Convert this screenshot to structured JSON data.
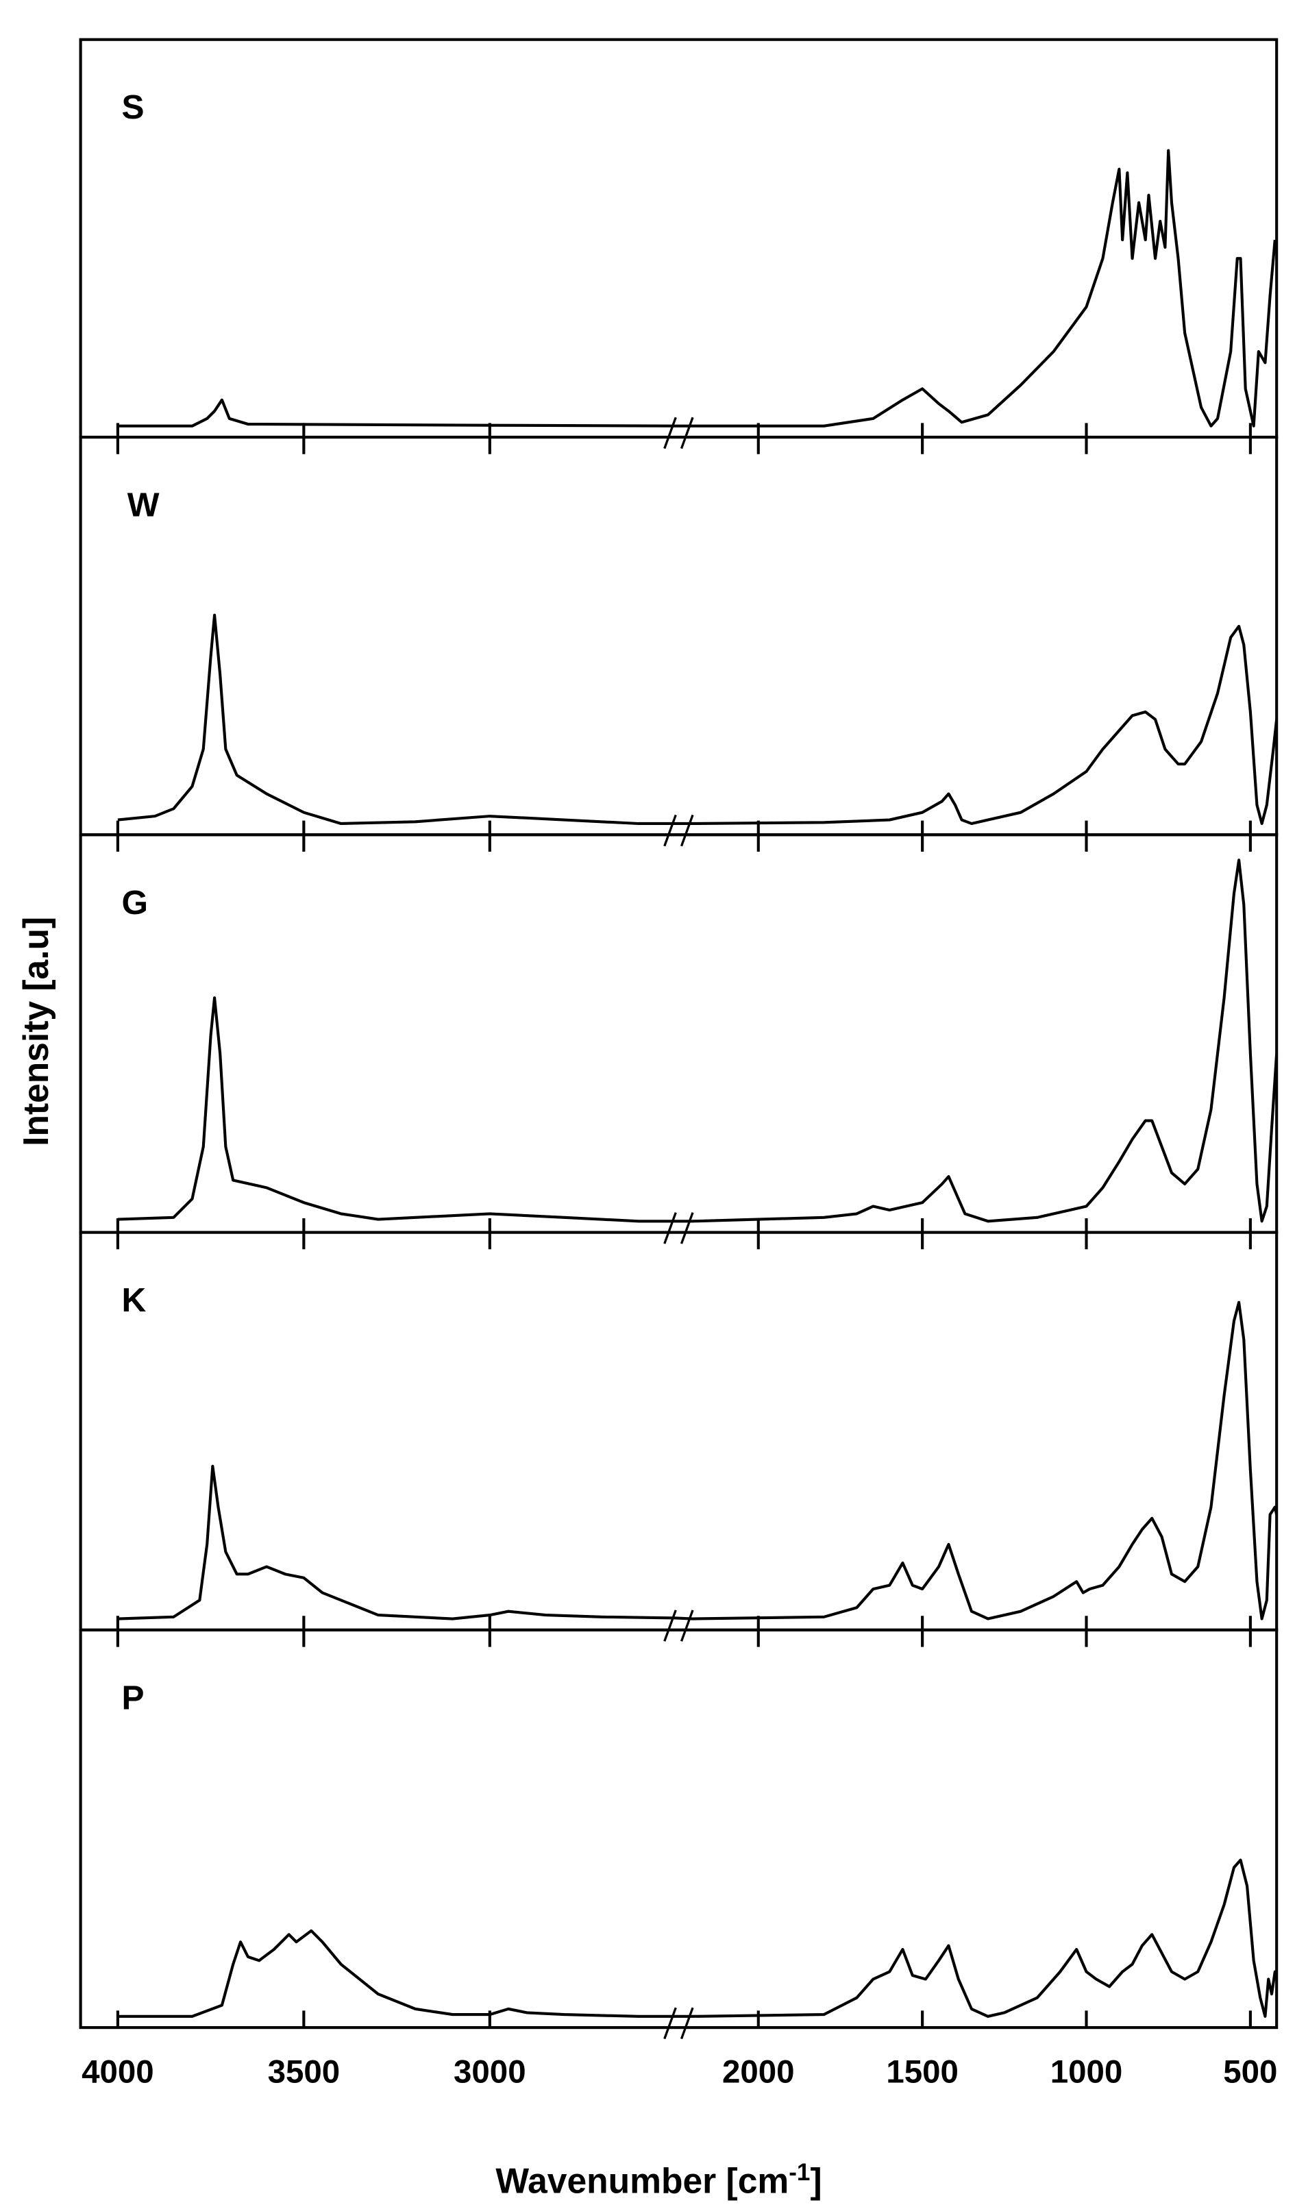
{
  "chart_data": {
    "type": "line",
    "ylabel": "Intensity [a.u]",
    "xlabel": {
      "text": "Wavenumber [cm",
      "sup": "-1",
      "end": "]"
    },
    "ylim": [
      -3,
      100
    ],
    "x_segments": [
      {
        "xlim": [
          4100,
          2500
        ],
        "xticks": [
          4000,
          3500,
          3000
        ]
      },
      {
        "xlim": [
          2200,
          420
        ],
        "xticks": [
          2000,
          1500,
          1000,
          500
        ]
      }
    ],
    "series": [
      {
        "name": "S",
        "color": "#000000",
        "x": [
          4000,
          3800,
          3760,
          3740,
          3720,
          3700,
          3650,
          3000,
          2500,
          2200,
          1800,
          1650,
          1560,
          1500,
          1450,
          1420,
          1380,
          1300,
          1200,
          1100,
          1000,
          950,
          920,
          900,
          890,
          875,
          860,
          840,
          820,
          810,
          790,
          775,
          760,
          750,
          740,
          720,
          700,
          650,
          620,
          600,
          560,
          540,
          530,
          515,
          490,
          475,
          455,
          440,
          425
        ],
        "values": [
          0,
          0,
          2,
          4,
          7,
          2,
          0.5,
          0.2,
          0,
          0,
          0,
          2,
          7,
          10,
          6,
          4,
          1,
          3,
          11,
          20,
          32,
          45,
          60,
          69,
          50,
          68,
          45,
          60,
          50,
          62,
          45,
          55,
          48,
          74,
          60,
          45,
          25,
          5,
          0,
          2,
          20,
          45,
          45,
          10,
          0,
          20,
          17,
          35,
          50
        ]
      },
      {
        "name": "W",
        "color": "#000000",
        "x": [
          4000,
          3900,
          3850,
          3800,
          3770,
          3750,
          3740,
          3725,
          3710,
          3680,
          3600,
          3500,
          3400,
          3200,
          3000,
          2800,
          2600,
          2200,
          1800,
          1600,
          1500,
          1440,
          1420,
          1400,
          1380,
          1350,
          1200,
          1100,
          1000,
          950,
          900,
          860,
          820,
          790,
          760,
          720,
          700,
          650,
          600,
          560,
          535,
          520,
          500,
          480,
          465,
          450,
          430,
          420
        ],
        "values": [
          1,
          2,
          4,
          10,
          20,
          45,
          56,
          40,
          20,
          13,
          8,
          3,
          0,
          0.5,
          2,
          1,
          0,
          0,
          0.3,
          1,
          3,
          6,
          8,
          5,
          1,
          0,
          3,
          8,
          14,
          20,
          25,
          29,
          30,
          28,
          20,
          16,
          16,
          22,
          35,
          50,
          53,
          48,
          30,
          5,
          0,
          5,
          20,
          28
        ]
      },
      {
        "name": "G",
        "color": "#000000",
        "x": [
          4000,
          3850,
          3800,
          3770,
          3750,
          3740,
          3725,
          3710,
          3690,
          3600,
          3500,
          3400,
          3300,
          3000,
          2800,
          2600,
          2200,
          1800,
          1700,
          1650,
          1600,
          1500,
          1440,
          1420,
          1400,
          1370,
          1300,
          1150,
          1050,
          1000,
          950,
          900,
          860,
          820,
          800,
          770,
          740,
          700,
          660,
          620,
          580,
          550,
          535,
          520,
          500,
          480,
          465,
          450,
          435,
          420
        ],
        "values": [
          0.5,
          1,
          6,
          20,
          50,
          60,
          45,
          20,
          11,
          9,
          5,
          2,
          0.5,
          2,
          1,
          0,
          0,
          1,
          2,
          4,
          3,
          5,
          10,
          12,
          8,
          2,
          0,
          1,
          3,
          4,
          9,
          16,
          22,
          27,
          27,
          20,
          13,
          10,
          14,
          30,
          60,
          88,
          97,
          85,
          45,
          10,
          0,
          4,
          25,
          45
        ]
      },
      {
        "name": "K",
        "color": "#000000",
        "x": [
          4000,
          3850,
          3780,
          3760,
          3745,
          3730,
          3710,
          3680,
          3650,
          3600,
          3550,
          3500,
          3450,
          3400,
          3300,
          3100,
          3000,
          2950,
          2850,
          2700,
          2500,
          2200,
          1800,
          1700,
          1650,
          1600,
          1560,
          1530,
          1500,
          1450,
          1420,
          1390,
          1350,
          1300,
          1200,
          1100,
          1030,
          1010,
          990,
          950,
          900,
          860,
          830,
          800,
          770,
          740,
          700,
          660,
          620,
          580,
          550,
          535,
          520,
          500,
          480,
          465,
          450,
          440,
          425,
          420
        ],
        "values": [
          0,
          0.5,
          5,
          20,
          41,
          30,
          18,
          12,
          12,
          14,
          12,
          11,
          7,
          5,
          1,
          0,
          1,
          2,
          1,
          0.5,
          0.2,
          0,
          0.5,
          3,
          8,
          9,
          15,
          9,
          8,
          14,
          20,
          12,
          2,
          0,
          2,
          6,
          10,
          7,
          8,
          9,
          14,
          20,
          24,
          27,
          22,
          12,
          10,
          14,
          30,
          60,
          80,
          85,
          75,
          40,
          10,
          0,
          5,
          28,
          30,
          28
        ]
      },
      {
        "name": "P",
        "color": "#000000",
        "x": [
          4000,
          3800,
          3720,
          3690,
          3670,
          3650,
          3620,
          3580,
          3540,
          3520,
          3480,
          3450,
          3400,
          3300,
          3200,
          3100,
          3000,
          2950,
          2900,
          2800,
          2600,
          2200,
          1800,
          1700,
          1650,
          1600,
          1560,
          1530,
          1490,
          1450,
          1420,
          1390,
          1350,
          1300,
          1250,
          1150,
          1080,
          1030,
          1000,
          970,
          930,
          890,
          860,
          830,
          800,
          770,
          740,
          700,
          660,
          620,
          580,
          550,
          530,
          510,
          490,
          470,
          455,
          445,
          435,
          425,
          420
        ],
        "values": [
          0,
          0,
          3,
          14,
          20,
          16,
          15,
          18,
          22,
          20,
          23,
          20,
          14,
          6,
          2,
          0.5,
          0.5,
          2,
          1,
          0.5,
          0,
          0,
          0.5,
          5,
          10,
          12,
          18,
          11,
          10,
          15,
          19,
          10,
          2,
          0,
          1,
          5,
          12,
          18,
          12,
          10,
          8,
          12,
          14,
          19,
          22,
          17,
          12,
          10,
          12,
          20,
          30,
          40,
          42,
          35,
          15,
          5,
          0,
          10,
          6,
          12,
          10
        ]
      }
    ]
  }
}
